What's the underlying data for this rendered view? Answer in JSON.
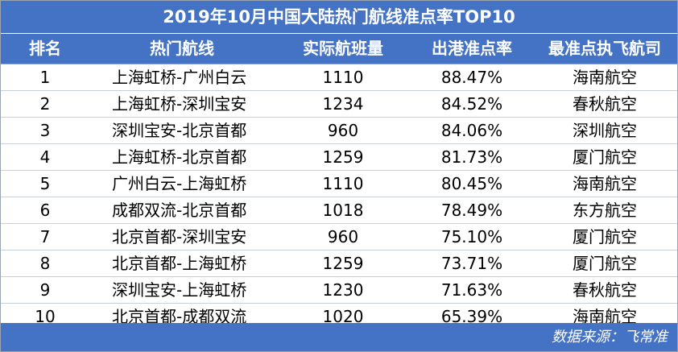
{
  "title": "2019年10月中国大陆热门航线准点率TOP10",
  "headers": {
    "rank": "排名",
    "route": "热门航线",
    "flights": "实际航班量",
    "otp": "出港准点率",
    "airline": "最准点执飞航司"
  },
  "rows": [
    {
      "rank": "1",
      "route": "上海虹桥-广州白云",
      "flights": "1110",
      "otp": "88.47%",
      "airline": "海南航空"
    },
    {
      "rank": "2",
      "route": "上海虹桥-深圳宝安",
      "flights": "1234",
      "otp": "84.52%",
      "airline": "春秋航空"
    },
    {
      "rank": "3",
      "route": "深圳宝安-北京首都",
      "flights": "960",
      "otp": "84.06%",
      "airline": "深圳航空"
    },
    {
      "rank": "4",
      "route": "上海虹桥-北京首都",
      "flights": "1259",
      "otp": "81.73%",
      "airline": "厦门航空"
    },
    {
      "rank": "5",
      "route": "广州白云-上海虹桥",
      "flights": "1110",
      "otp": "80.45%",
      "airline": "海南航空"
    },
    {
      "rank": "6",
      "route": "成都双流-北京首都",
      "flights": "1018",
      "otp": "78.49%",
      "airline": "东方航空"
    },
    {
      "rank": "7",
      "route": "北京首都-深圳宝安",
      "flights": "960",
      "otp": "75.10%",
      "airline": "厦门航空"
    },
    {
      "rank": "8",
      "route": "北京首都-上海虹桥",
      "flights": "1259",
      "otp": "73.71%",
      "airline": "厦门航空"
    },
    {
      "rank": "9",
      "route": "深圳宝安-上海虹桥",
      "flights": "1230",
      "otp": "71.63%",
      "airline": "春秋航空"
    },
    {
      "rank": "10",
      "route": "北京首都-成都双流",
      "flights": "1020",
      "otp": "65.39%",
      "airline": "海南航空"
    }
  ],
  "footer": "数据来源：飞常准",
  "colors": {
    "header_bg": "#4472c4",
    "header_text": "#ffffff"
  }
}
